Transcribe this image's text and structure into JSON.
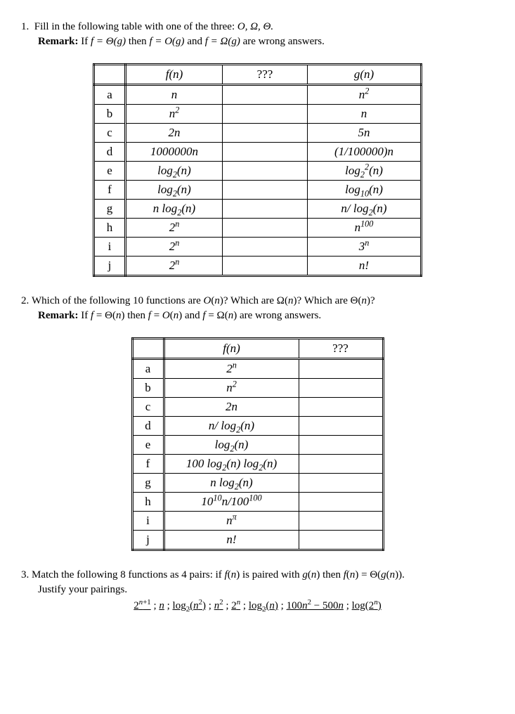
{
  "q1": {
    "num": "1.",
    "prompt_pre": "Fill in the following table with one of the three: ",
    "symbols": "O, Ω, Θ.",
    "remark_label": "Remark:",
    "remark_text_a": " If ",
    "remark_eq1": "f = Θ(g)",
    "remark_text_b": " then ",
    "remark_eq2": "f = O(g)",
    "remark_text_c": " and ",
    "remark_eq3": "f = Ω(g)",
    "remark_text_d": " are wrong answers.",
    "head_f": "f(n)",
    "head_q": "???",
    "head_g": "g(n)",
    "rows": [
      {
        "l": "a",
        "f": "n",
        "g": "n<span class='sup'>2</span>"
      },
      {
        "l": "b",
        "f": "n<span class='sup'>2</span>",
        "g": "n"
      },
      {
        "l": "c",
        "f": "2n",
        "g": "5n"
      },
      {
        "l": "d",
        "f": "1000000n",
        "g": "(1/100000)n"
      },
      {
        "l": "e",
        "f": "log<span class='sub'>2</span>(n)",
        "g": "log<span class='sub'>2</span><span class='sup'>2</span>(n)"
      },
      {
        "l": "f",
        "f": "log<span class='sub'>2</span>(n)",
        "g": "log<span class='sub'>10</span>(n)"
      },
      {
        "l": "g",
        "f": "n log<span class='sub'>2</span>(n)",
        "g": "n/ log<span class='sub'>2</span>(n)"
      },
      {
        "l": "h",
        "f": "2<span class='sup'>n</span>",
        "g": "n<span class='sup'>100</span>"
      },
      {
        "l": "i",
        "f": "2<span class='sup'>n</span>",
        "g": "3<span class='sup'>n</span>"
      },
      {
        "l": "j",
        "f": "2<span class='sup'>n</span>",
        "g": "n!"
      }
    ]
  },
  "q2": {
    "num": "2.",
    "prompt": "Which of the following 10 functions are <span class='mi'>O</span>(<span class='mi'>n</span>)? Which are Ω(<span class='mi'>n</span>)? Which are Θ(<span class='mi'>n</span>)?",
    "remark_label": "Remark:",
    "remark_html": " If <span class='mi'>f</span> = Θ(<span class='mi'>n</span>) then <span class='mi'>f</span> = <span class='mi'>O</span>(<span class='mi'>n</span>) and <span class='mi'>f</span> = Ω(<span class='mi'>n</span>) are wrong answers.",
    "head_f": "f(n)",
    "head_q": "???",
    "rows": [
      {
        "l": "a",
        "f": "2<span class='sup'>n</span>"
      },
      {
        "l": "b",
        "f": "n<span class='sup'>2</span>"
      },
      {
        "l": "c",
        "f": "2n"
      },
      {
        "l": "d",
        "f": "n/ log<span class='sub'>2</span>(n)"
      },
      {
        "l": "e",
        "f": "log<span class='sub'>2</span>(n)"
      },
      {
        "l": "f",
        "f": "100 log<span class='sub'>2</span>(n) log<span class='sub'>2</span>(n)"
      },
      {
        "l": "g",
        "f": "n log<span class='sub'>2</span>(n)"
      },
      {
        "l": "h",
        "f": "10<span class='sup'>10</span>n/100<span class='sup'>100</span>"
      },
      {
        "l": "i",
        "f": "n<span class='sup'>π</span>"
      },
      {
        "l": "j",
        "f": "n!"
      }
    ]
  },
  "q3": {
    "num": "3.",
    "line1": "Match the following 8 functions as 4 pairs: if <span class='mi'>f</span>(<span class='mi'>n</span>) is paired with <span class='mi'>g</span>(<span class='mi'>n</span>) then <span class='mi'>f</span>(<span class='mi'>n</span>) = Θ(<span class='mi'>g</span>(<span class='mi'>n</span>)).",
    "line2": "Justify your pairings.",
    "funcs": "<span class='ul'>2<span class='sup'><span class='mi'>n</span>+1</span></span> ; <span class='ul'><span class='mi'>n</span></span> ; <span class='ul'>log<span class='sub'>2</span>(<span class='mi'>n</span><span class='sup'>2</span>)</span> ; <span class='ul'><span class='mi'>n</span><span class='sup'>2</span></span> ; <span class='ul'>2<span class='sup'><span class='mi'>n</span></span></span> ; <span class='ul'>log<span class='sub'>2</span>(<span class='mi'>n</span>)</span> ; <span class='ul'>100<span class='mi'>n</span><span class='sup'>2</span> − 500<span class='mi'>n</span></span> ; <span class='ul'>log(2<span class='sup'><span class='mi'>n</span></span>)</span>"
  }
}
